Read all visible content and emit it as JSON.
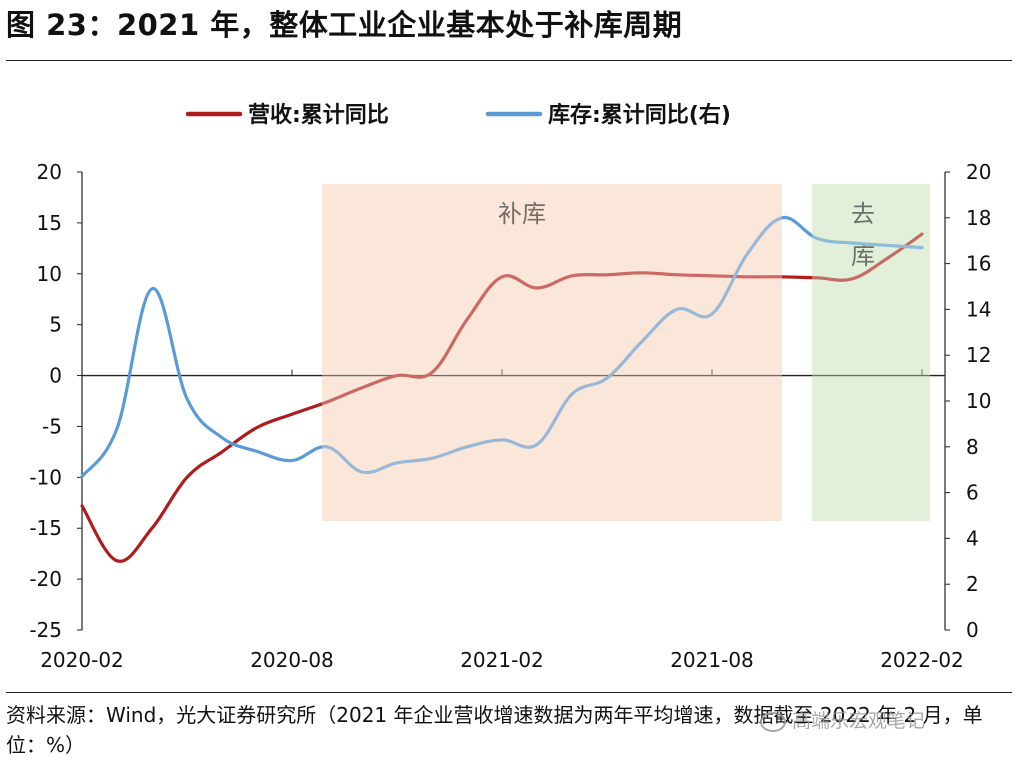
{
  "title": "图 23：2021 年，整体工业企业基本处于补库周期",
  "source": "资料来源：Wind，光大证券研究所（2021 年企业营收增速数据为两年平均增速，数据截至 2022 年 2 月，单位：%）",
  "watermark": "高端乐宏观笔记",
  "chart_data": {
    "type": "line",
    "title": "",
    "x": [
      "2020-02",
      "2020-03",
      "2020-04",
      "2020-05",
      "2020-06",
      "2020-07",
      "2020-08",
      "2020-09",
      "2020-10",
      "2020-11",
      "2020-12",
      "2021-01",
      "2021-02",
      "2021-03",
      "2021-04",
      "2021-05",
      "2021-06",
      "2021-07",
      "2021-08",
      "2021-09",
      "2021-10",
      "2021-11",
      "2021-12",
      "2022-01",
      "2022-02"
    ],
    "xticks": [
      "2020-02",
      "2020-08",
      "2021-02",
      "2021-08",
      "2022-02"
    ],
    "ylim_left": [
      -25,
      20
    ],
    "yticks_left": [
      -25,
      -20,
      -15,
      -10,
      -5,
      0,
      5,
      10,
      15,
      20
    ],
    "ylim_right": [
      0,
      20
    ],
    "yticks_right": [
      0,
      2,
      4,
      6,
      8,
      10,
      12,
      14,
      16,
      18,
      20
    ],
    "series": [
      {
        "name": "营收:累计同比",
        "axis": "left",
        "color": "#b01c1c",
        "values": [
          -12.8,
          -18.2,
          -15.0,
          -10.0,
          -7.5,
          -5.1,
          -3.8,
          -2.6,
          -1.2,
          0.0,
          0.3,
          5.5,
          9.7,
          8.6,
          9.8,
          9.9,
          10.1,
          9.9,
          9.8,
          9.7,
          9.7,
          9.6,
          9.5,
          11.5,
          13.9
        ]
      },
      {
        "name": "库存:累计同比(右)",
        "axis": "right",
        "color": "#5b9bd5",
        "values": [
          6.7,
          8.8,
          14.9,
          10.1,
          8.4,
          7.8,
          7.4,
          8.0,
          6.9,
          7.3,
          7.5,
          8.0,
          8.3,
          8.1,
          10.3,
          11.0,
          12.6,
          14.0,
          13.8,
          16.4,
          18.0,
          17.1,
          16.9,
          16.8,
          16.7
        ]
      }
    ],
    "regions": [
      {
        "label": "补库",
        "from": "2020-09",
        "to": "2021-10",
        "color": "#fbe7da"
      },
      {
        "label": "去库",
        "from": "2021-11",
        "to": "2022-02",
        "color": "#e3f0d9"
      }
    ]
  }
}
